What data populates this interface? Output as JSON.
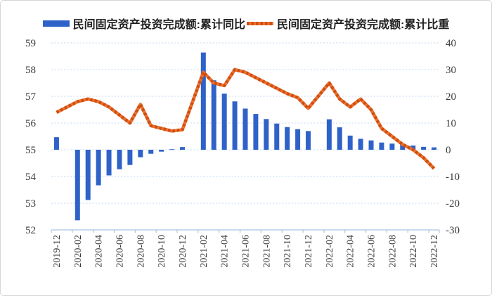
{
  "legend": {
    "items": [
      {
        "label": "民间固定资产投资完成额:累计同比",
        "type": "bar"
      },
      {
        "label": "民间固定资产投资完成额:累计比重",
        "type": "line"
      }
    ]
  },
  "colors": {
    "bar": "#2f62c8",
    "line": "#ed7031",
    "line_dash": "#cf4f0e",
    "grid": "#c3d9f0",
    "axis": "#a9c5e4",
    "text": "#3a3a3a"
  },
  "chart_data": {
    "type": "combo",
    "title": "",
    "categories": [
      "2019-12",
      "2020-01",
      "2020-02",
      "2020-03",
      "2020-04",
      "2020-05",
      "2020-06",
      "2020-07",
      "2020-08",
      "2020-09",
      "2020-10",
      "2020-11",
      "2020-12",
      "2021-01",
      "2021-02",
      "2021-03",
      "2021-04",
      "2021-05",
      "2021-06",
      "2021-07",
      "2021-08",
      "2021-09",
      "2021-10",
      "2021-11",
      "2021-12",
      "2022-01",
      "2022-02",
      "2022-03",
      "2022-04",
      "2022-05",
      "2022-06",
      "2022-07",
      "2022-08",
      "2022-09",
      "2022-10",
      "2022-11",
      "2022-12"
    ],
    "series": [
      {
        "name": "民间固定资产投资完成额:累计同比",
        "type": "bar",
        "axis": "right",
        "unit": "%",
        "values": [
          4.7,
          null,
          -26.4,
          -18.8,
          -13.3,
          -9.6,
          -7.3,
          -5.7,
          -2.8,
          -1.5,
          -0.7,
          0.2,
          1.0,
          null,
          36.4,
          26.0,
          21.0,
          18.1,
          15.4,
          13.4,
          11.5,
          9.8,
          8.5,
          7.7,
          7.0,
          null,
          11.4,
          8.4,
          5.3,
          4.1,
          3.5,
          2.7,
          2.3,
          2.0,
          1.6,
          1.1,
          0.9
        ]
      },
      {
        "name": "民间固定资产投资完成额:累计比重",
        "type": "line",
        "axis": "left",
        "unit": "%",
        "values": [
          56.4,
          null,
          56.8,
          56.9,
          56.8,
          56.6,
          56.3,
          56.0,
          56.7,
          55.9,
          55.8,
          55.7,
          55.75,
          null,
          57.9,
          57.5,
          57.4,
          58.0,
          57.9,
          57.7,
          57.5,
          57.3,
          57.1,
          56.95,
          56.55,
          null,
          57.5,
          56.9,
          56.6,
          56.9,
          56.5,
          55.8,
          55.5,
          55.2,
          55.0,
          54.7,
          54.3
        ]
      }
    ],
    "left_axis": {
      "min": 52,
      "max": 59,
      "ticks": [
        59,
        58,
        57,
        56,
        55,
        54,
        53,
        52
      ]
    },
    "right_axis": {
      "min": -30,
      "max": 40,
      "ticks": [
        40,
        30,
        20,
        10,
        0,
        -10,
        -20,
        -30
      ]
    },
    "x_tick_labels": [
      "2019-12",
      "2020-02",
      "2020-04",
      "2020-06",
      "2020-08",
      "2020-10",
      "2020-12",
      "2021-02",
      "2021-04",
      "2021-06",
      "2021-08",
      "2021-10",
      "2021-12",
      "2022-02",
      "2022-04",
      "2022-06",
      "2022-08",
      "2022-10",
      "2022-12"
    ],
    "grid": true,
    "legend_position": "top"
  }
}
